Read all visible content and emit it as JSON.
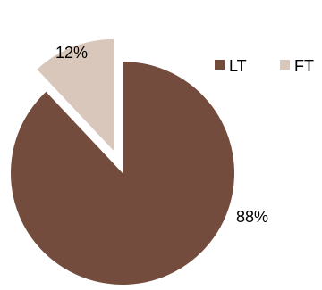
{
  "chart_data": {
    "type": "pie",
    "title": "",
    "slices": [
      {
        "label": "LT",
        "value": 88,
        "color": "#734C3E",
        "data_label": "88%",
        "exploded": false
      },
      {
        "label": "FT",
        "value": 12,
        "color": "#D9C7BC",
        "data_label": "12%",
        "exploded": true
      }
    ],
    "legend": {
      "position": "top-right",
      "entries": [
        "LT",
        "FT"
      ]
    }
  }
}
